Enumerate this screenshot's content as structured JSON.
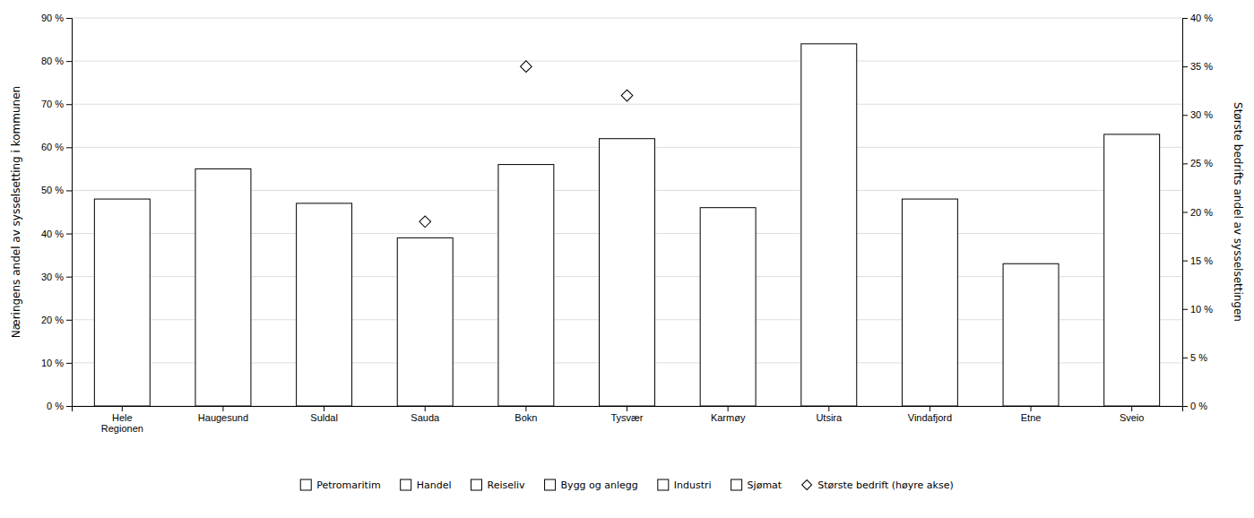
{
  "chart_data": {
    "type": "bar",
    "categories": [
      "Hele\nRegionen",
      "Haugesund",
      "Suldal",
      "Sauda",
      "Bokn",
      "Tysvær",
      "Karmøy",
      "Utsira",
      "Vindafjord",
      "Etne",
      "Sveio"
    ],
    "series": [
      {
        "type": "bar",
        "color": "#ffffff",
        "values": [
          0.48,
          0.55,
          0.47,
          0.39,
          0.56,
          0.62,
          0.46,
          0.84,
          0.48,
          0.33,
          0.63
        ]
      },
      {
        "name": "Største bedrift (høyre akse)",
        "type": "scatter",
        "marker": "diamond",
        "axis": "y2",
        "color": "#ffffff",
        "values": [
          null,
          null,
          null,
          0.19,
          0.35,
          0.32,
          null,
          null,
          null,
          null,
          null
        ]
      }
    ],
    "annotations": [
      "Petromaritim",
      "Handel",
      "Reiseliv",
      "Bygg og anlegg",
      "Industri",
      "Sjømat"
    ],
    "ylabel": "Næringens andel av sysselsetting i kommunen",
    "y2label": "Største bedrifts andel av sysselsettingen",
    "ylim": [
      0,
      0.9
    ],
    "yticks": [
      {
        "value": 0.0,
        "label": "0 %"
      },
      {
        "value": 0.1,
        "label": "10 %"
      },
      {
        "value": 0.2,
        "label": "20 %"
      },
      {
        "value": 0.3,
        "label": "30 %"
      },
      {
        "value": 0.4,
        "label": "40 %"
      },
      {
        "value": 0.5,
        "label": "50 %"
      },
      {
        "value": 0.6,
        "label": "60 %"
      },
      {
        "value": 0.7,
        "label": "70 %"
      },
      {
        "value": 0.8,
        "label": "80 %"
      },
      {
        "value": 0.9,
        "label": "90 %"
      }
    ],
    "y2lim": [
      0,
      0.4
    ],
    "y2ticks": [
      {
        "value": 0.0,
        "label": "0 %"
      },
      {
        "value": 0.05,
        "label": "5 %"
      },
      {
        "value": 0.1,
        "label": "10 %"
      },
      {
        "value": 0.15,
        "label": "15 %"
      },
      {
        "value": 0.2,
        "label": "20 %"
      },
      {
        "value": 0.25,
        "label": "25 %"
      },
      {
        "value": 0.3,
        "label": "30 %"
      },
      {
        "value": 0.35,
        "label": "35 %"
      },
      {
        "value": 0.4,
        "label": "40 %"
      }
    ],
    "grid": true,
    "legend": "bottom"
  }
}
